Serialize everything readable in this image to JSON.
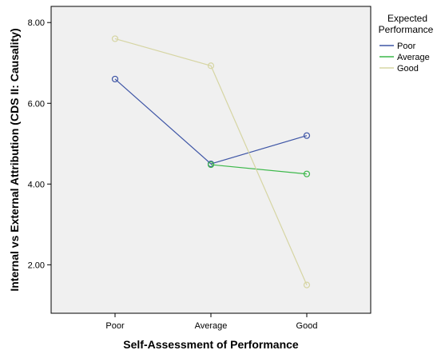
{
  "chart_data": {
    "type": "line",
    "xlabel": "Self-Assessment of Performance",
    "ylabel": "Internal vs External Attribution (CDS II: Causality)",
    "categories": [
      "Poor",
      "Average",
      "Good"
    ],
    "ylim": [
      0.8,
      8.4
    ],
    "yticks": [
      2.0,
      4.0,
      6.0,
      8.0
    ],
    "ytick_labels": [
      "2.00",
      "4.00",
      "6.00",
      "8.00"
    ],
    "grid": false,
    "background": "#f0f0f0",
    "legend": {
      "title": "Expected Performance",
      "title_lines": [
        "Expected",
        "Performance"
      ],
      "placement": "right"
    },
    "series": [
      {
        "name": "Poor",
        "color": "#3f56a6",
        "values": [
          6.6,
          4.5,
          5.2
        ]
      },
      {
        "name": "Average",
        "color": "#3cb84a",
        "values": [
          null,
          4.48,
          4.25
        ]
      },
      {
        "name": "Good",
        "color": "#d6d5a3",
        "values": [
          7.6,
          6.93,
          1.5
        ]
      }
    ]
  }
}
